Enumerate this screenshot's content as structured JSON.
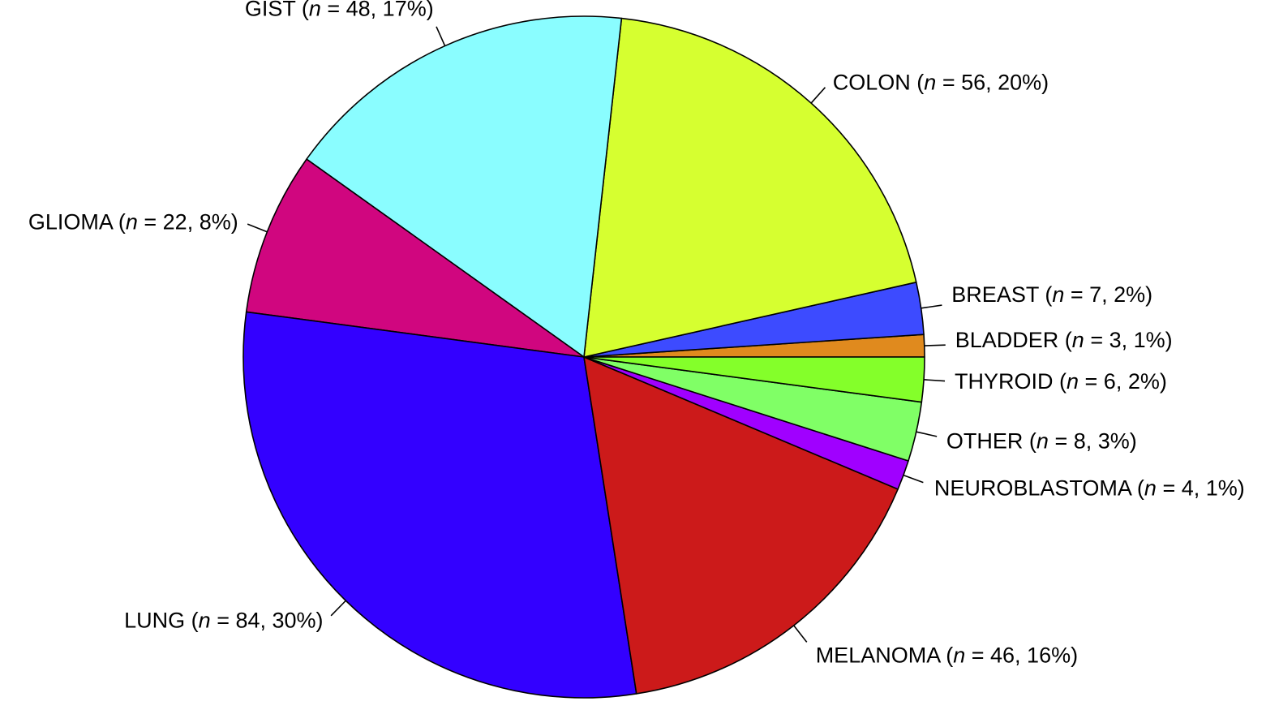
{
  "chart_data": {
    "type": "pie",
    "title": "",
    "start_angle_deg": 0,
    "direction": "counterclockwise",
    "slices": [
      {
        "label": "BLADDER",
        "n": 3,
        "percent": "1%",
        "color": "#E08A1E"
      },
      {
        "label": "BREAST",
        "n": 7,
        "percent": "2%",
        "color": "#3D4BFF"
      },
      {
        "label": "COLON",
        "n": 56,
        "percent": "20%",
        "color": "#D6FF30"
      },
      {
        "label": "GIST",
        "n": 48,
        "percent": "17%",
        "color": "#8AFDFF"
      },
      {
        "label": "GLIOMA",
        "n": 22,
        "percent": "8%",
        "color": "#D0067F"
      },
      {
        "label": "LUNG",
        "n": 84,
        "percent": "30%",
        "color": "#3300FF"
      },
      {
        "label": "MELANOMA",
        "n": 46,
        "percent": "16%",
        "color": "#CC1A1A"
      },
      {
        "label": "NEUROBLASTOMA",
        "n": 4,
        "percent": "1%",
        "color": "#A000FF"
      },
      {
        "label": "OTHER",
        "n": 8,
        "percent": "3%",
        "color": "#80FF66"
      },
      {
        "label": "THYROID",
        "n": 6,
        "percent": "2%",
        "color": "#84FF2A"
      }
    ]
  }
}
